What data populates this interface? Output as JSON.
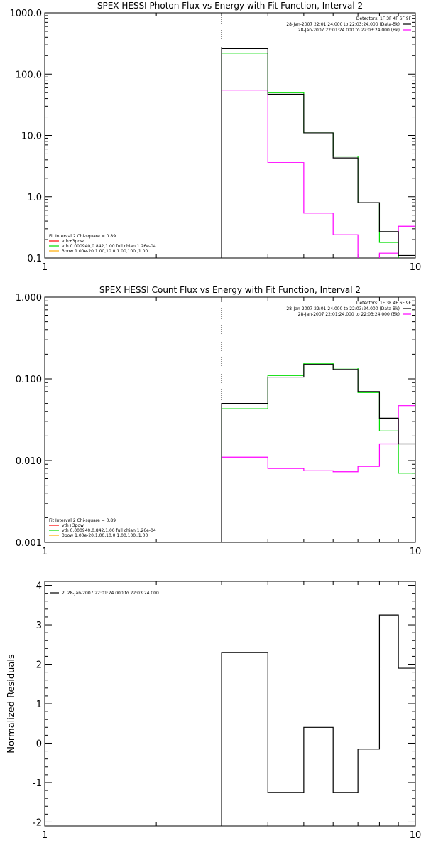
{
  "chart_data": [
    {
      "type": "line",
      "title": "SPEX HESSI Photon Flux vs Energy with Fit Function, Interval 2",
      "xlabel": "",
      "ylabel": "",
      "xscale": "log",
      "yscale": "log",
      "xlim": [
        1,
        10
      ],
      "ylim": [
        0.1,
        1000
      ],
      "x_ticks": [
        "1",
        "10"
      ],
      "y_ticks": [
        "0.1",
        "1.0",
        "10.0",
        "100.0",
        "1000.0"
      ],
      "vline_x": 3.0,
      "legend_top_right": {
        "lines": [
          "Detectors: 1F 3F 4F 6F 9F",
          "28-Jan-2007 22:01:24.000 to 22:03:24.000 (Data-Bk)",
          "28-Jan-2007 22:01:24.000 to 22:03:24.000 (Bk)"
        ],
        "colors": [
          "",
          "#000000",
          "#ff00ff"
        ]
      },
      "legend_bottom_left": {
        "lines": [
          "Fit Interval 2   Chi-square = 0.89",
          "vth+3pow",
          "vth 0.000940,0.842,1.00  full chian 1.26e-04",
          "3pow 1.00e-20,1.00,10.0,1.00,100.,1.00"
        ],
        "colors": [
          "",
          "#ff0000",
          "#00dd00",
          "#ffaa00"
        ]
      },
      "series": [
        {
          "name": "Data-Bk",
          "color": "#000000",
          "edges": [
            3.0,
            3.5,
            4.0,
            4.5,
            5.0,
            5.5,
            6.0,
            6.5,
            7.0,
            7.5,
            8.0,
            8.5,
            9.0,
            9.5,
            10.0
          ],
          "values": [
            260,
            260,
            47,
            47,
            11,
            11,
            4.3,
            4.3,
            0.8,
            0.8,
            0.27,
            0.27,
            0.11,
            0.11
          ]
        },
        {
          "name": "vth",
          "color": "#00dd00",
          "edges": [
            3.0,
            3.5,
            4.0,
            4.5,
            5.0,
            5.5,
            6.0,
            6.5,
            7.0,
            7.5,
            8.0,
            8.5,
            9.0,
            9.5,
            10.0
          ],
          "values": [
            220,
            220,
            50,
            50,
            11,
            11,
            4.6,
            4.6,
            0.8,
            0.8,
            0.18,
            0.18,
            0.08,
            0.08
          ]
        },
        {
          "name": "Bk",
          "color": "#ff00ff",
          "edges": [
            3.0,
            3.5,
            4.0,
            4.5,
            5.0,
            5.5,
            6.0,
            6.5,
            7.0,
            7.5,
            8.0,
            8.5,
            9.0,
            9.5,
            10.0
          ],
          "values": [
            55,
            55,
            3.6,
            3.6,
            0.54,
            0.54,
            0.24,
            0.24,
            0.095,
            0.095,
            0.12,
            0.12,
            0.33,
            0.33
          ]
        }
      ]
    },
    {
      "type": "line",
      "title": "SPEX HESSI Count Flux vs Energy with Fit Function, Interval 2",
      "xlabel": "",
      "ylabel": "",
      "xscale": "log",
      "yscale": "log",
      "xlim": [
        1,
        10
      ],
      "ylim": [
        0.001,
        1.0
      ],
      "x_ticks": [
        "1",
        "10"
      ],
      "y_ticks": [
        "0.001",
        "0.010",
        "0.100",
        "1.000"
      ],
      "vline_x": 3.0,
      "legend_top_right": {
        "lines": [
          "Detectors: 1F 3F 4F 6F 9F",
          "28-Jan-2007 22:01:24.000 to 22:03:24.000 (Data-Bk)",
          "28-Jan-2007 22:01:24.000 to 22:03:24.000 (Bk)"
        ],
        "colors": [
          "",
          "#000000",
          "#ff00ff"
        ]
      },
      "legend_bottom_left": {
        "lines": [
          "Fit Interval 2   Chi-square = 0.89",
          "vth+3pow",
          "vth 0.000940,0.842,1.00  full chian 1.26e-04",
          "3pow 1.00e-20,1.00,10.0,1.00,100.,1.00"
        ],
        "colors": [
          "",
          "#ff0000",
          "#00dd00",
          "#ffaa00"
        ]
      },
      "series": [
        {
          "name": "Data-Bk",
          "color": "#000000",
          "edges": [
            3.0,
            3.5,
            4.0,
            4.5,
            5.0,
            5.5,
            6.0,
            6.5,
            7.0,
            7.5,
            8.0,
            8.5,
            9.0,
            9.5,
            10.0
          ],
          "values": [
            0.05,
            0.05,
            0.105,
            0.105,
            0.15,
            0.15,
            0.13,
            0.13,
            0.07,
            0.07,
            0.033,
            0.033,
            0.016,
            0.016
          ]
        },
        {
          "name": "vth",
          "color": "#00dd00",
          "edges": [
            3.0,
            3.5,
            4.0,
            4.5,
            5.0,
            5.5,
            6.0,
            6.5,
            7.0,
            7.5,
            8.0,
            8.5,
            9.0,
            9.5,
            10.0
          ],
          "values": [
            0.043,
            0.043,
            0.11,
            0.11,
            0.155,
            0.155,
            0.136,
            0.136,
            0.068,
            0.068,
            0.023,
            0.023,
            0.007,
            0.007
          ]
        },
        {
          "name": "Bk",
          "color": "#ff00ff",
          "edges": [
            3.0,
            3.5,
            4.0,
            4.5,
            5.0,
            5.5,
            6.0,
            6.5,
            7.0,
            7.5,
            8.0,
            8.5,
            9.0,
            9.5,
            10.0
          ],
          "values": [
            0.011,
            0.011,
            0.008,
            0.008,
            0.0075,
            0.0075,
            0.0073,
            0.0073,
            0.0085,
            0.0085,
            0.016,
            0.016,
            0.047,
            0.047
          ]
        }
      ]
    },
    {
      "type": "line",
      "title": "",
      "xlabel": "",
      "ylabel": "Normalized Residuals",
      "xscale": "log",
      "yscale": "linear",
      "xlim": [
        1,
        10
      ],
      "ylim": [
        -2.1,
        4.1
      ],
      "x_ticks": [
        "1",
        "10"
      ],
      "y_ticks": [
        "-2",
        "-1",
        "0",
        "1",
        "2",
        "3",
        "4"
      ],
      "legend_top_left": {
        "lines": [
          "2. 28-Jan-2007 22:01:24.000 to 22:03:24.000"
        ],
        "colors": [
          "#000000"
        ]
      },
      "series": [
        {
          "name": "2. 28-Jan-2007 22:01:24.000 to 22:03:24.000",
          "color": "#000000",
          "edges": [
            3.0,
            3.5,
            4.0,
            4.5,
            5.0,
            5.5,
            6.0,
            6.5,
            7.0,
            7.5,
            8.0,
            8.5,
            9.0,
            9.5,
            10.0
          ],
          "values": [
            2.3,
            2.3,
            -1.25,
            -1.25,
            0.4,
            0.4,
            -1.25,
            -1.25,
            -0.15,
            -0.15,
            3.25,
            3.25,
            1.9,
            1.9
          ]
        }
      ]
    }
  ]
}
